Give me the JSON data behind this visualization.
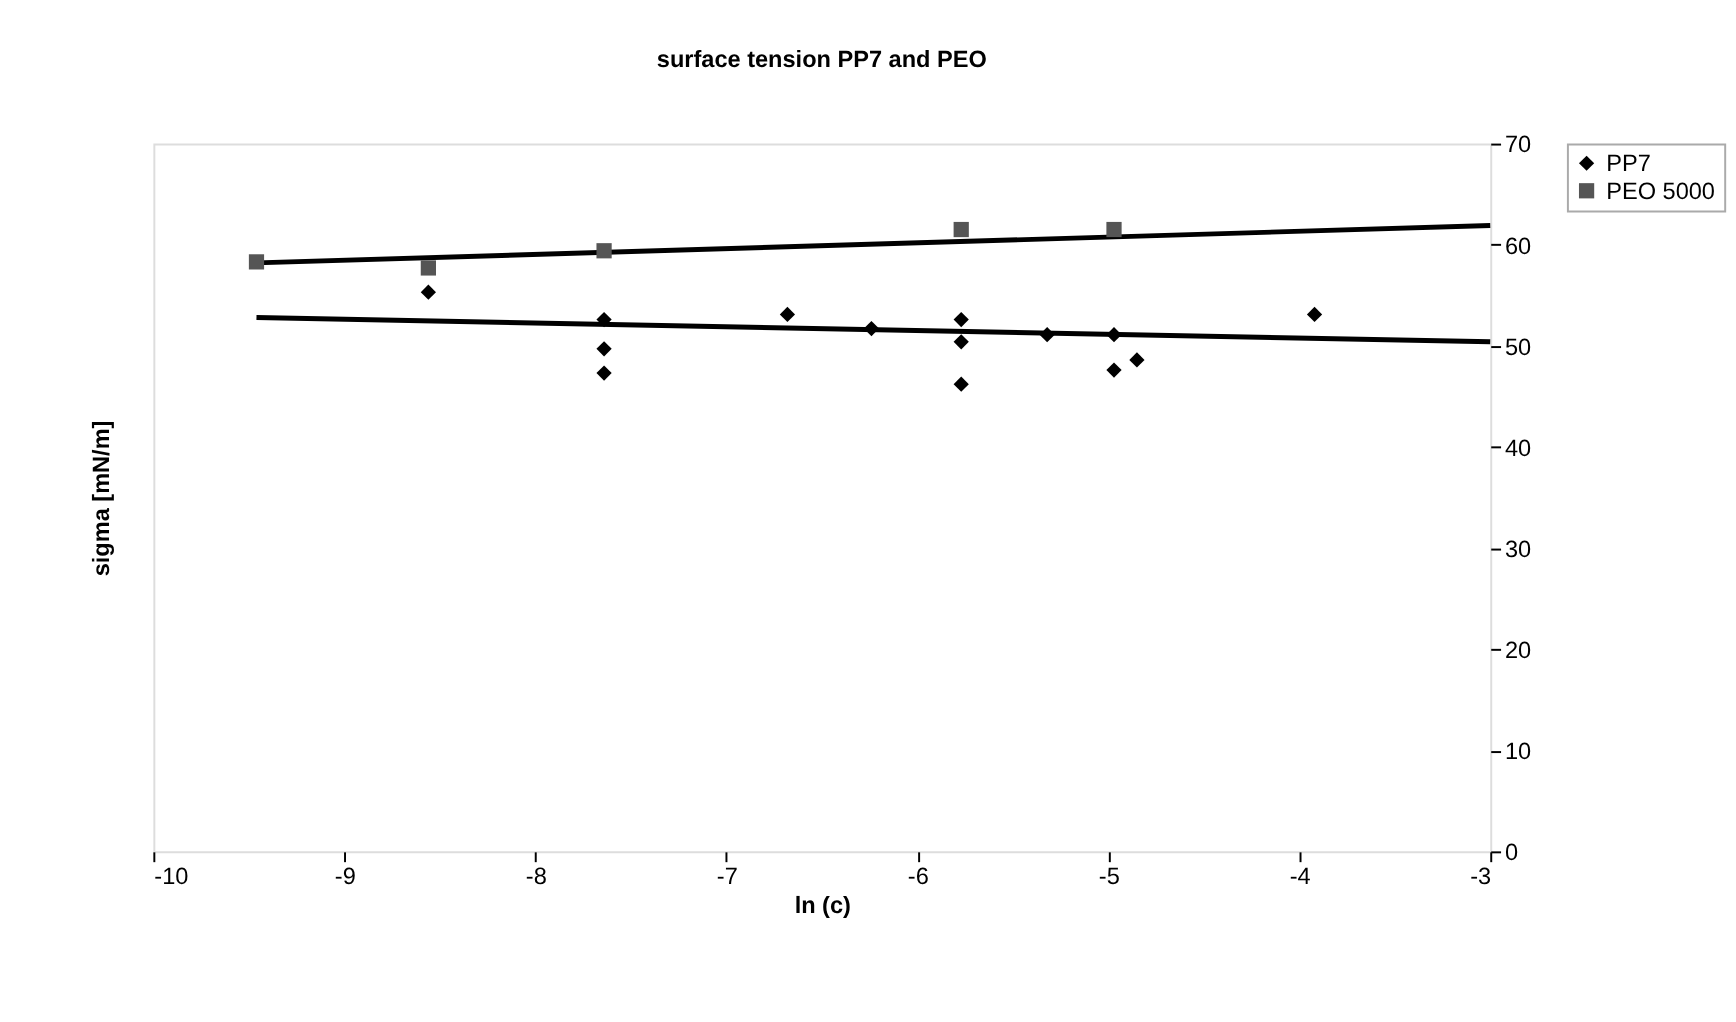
{
  "chart_data": {
    "type": "scatter",
    "title": "surface tension PP7 and PEO",
    "xlabel": "ln (c)",
    "ylabel": "sigma [mN/m]",
    "xlim": [
      -10,
      -3
    ],
    "xticks": [
      -10,
      -9,
      -8,
      -7,
      -6,
      -5,
      -4,
      -3
    ],
    "ylim": [
      0,
      70
    ],
    "yticks": [
      0,
      10,
      20,
      30,
      40,
      50,
      60,
      70
    ],
    "grid": false,
    "legend": "right",
    "series": [
      {
        "name": "PP7",
        "color": "#000000",
        "marker": "diamond",
        "x": [
          -8.56,
          -7.64,
          -7.64,
          -7.64,
          -6.68,
          -6.24,
          -5.77,
          -5.77,
          -5.77,
          -5.32,
          -4.97,
          -4.97,
          -4.85,
          -3.92
        ],
        "values": [
          55.3,
          52.6,
          49.7,
          47.3,
          53.1,
          51.7,
          52.6,
          50.4,
          46.2,
          51.1,
          51.1,
          47.6,
          48.6,
          53.1
        ]
      },
      {
        "name": "PEO 5000",
        "color": "#555555",
        "marker": "square",
        "x": [
          -9.46,
          -8.56,
          -7.64,
          -5.77,
          -4.97
        ],
        "values": [
          58.3,
          57.7,
          59.4,
          61.5,
          61.5
        ]
      },
      {
        "type": "line",
        "color": "#000000",
        "x": [
          -9.46,
          -3
        ],
        "values": [
          52.8,
          50.4
        ]
      },
      {
        "type": "line",
        "color": "#000000",
        "x": [
          -9.46,
          -3
        ],
        "values": [
          58.2,
          61.9
        ]
      }
    ]
  }
}
